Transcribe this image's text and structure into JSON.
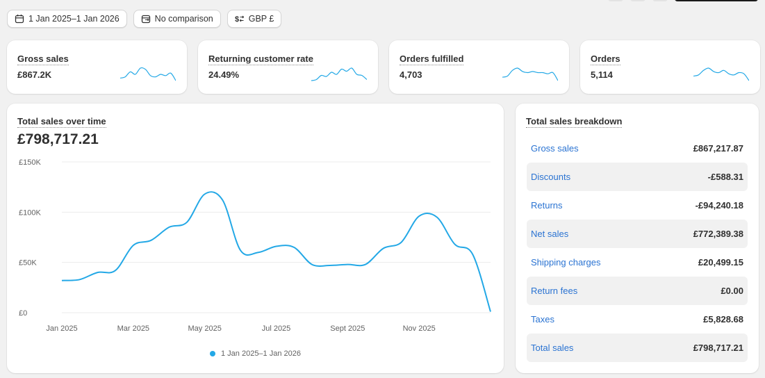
{
  "toolbar": {
    "date_range": "1 Jan 2025–1 Jan 2026",
    "comparison": "No comparison",
    "currency": "GBP £"
  },
  "kpis": [
    {
      "title": "Gross sales",
      "value": "£867.2K"
    },
    {
      "title": "Returning customer rate",
      "value": "24.49%"
    },
    {
      "title": "Orders fulfilled",
      "value": "4,703"
    },
    {
      "title": "Orders",
      "value": "5,114"
    }
  ],
  "sales_chart": {
    "title": "Total sales over time",
    "total": "£798,717.21",
    "legend": "1 Jan 2025–1 Jan 2026",
    "accent_color": "#23a8e6"
  },
  "chart_data": {
    "type": "line",
    "title": "Total sales over time",
    "x": [
      0,
      0.5,
      1,
      1.5,
      2,
      2.5,
      3,
      3.5,
      4,
      4.5,
      5,
      5.5,
      6,
      6.5,
      7,
      7.5,
      8,
      8.5,
      9,
      9.5,
      10,
      10.5,
      11,
      11.5,
      12
    ],
    "y_thousands": [
      32,
      33,
      40,
      42,
      67,
      72,
      85,
      90,
      118,
      112,
      62,
      60,
      66,
      65,
      48,
      47,
      48,
      48,
      64,
      70,
      96,
      95,
      68,
      58,
      1
    ],
    "x_tick_labels": [
      "Jan 2025",
      "Mar 2025",
      "May 2025",
      "Jul 2025",
      "Sept 2025",
      "Nov 2025"
    ],
    "x_tick_positions": [
      0,
      2,
      4,
      6,
      8,
      10
    ],
    "y_tick_labels": [
      "£0",
      "£50K",
      "£100K",
      "£150K"
    ],
    "y_tick_values": [
      0,
      50,
      100,
      150
    ],
    "ylim": [
      0,
      150
    ],
    "xlim": [
      0,
      12
    ],
    "series": [
      {
        "name": "1 Jan 2025–1 Jan 2026"
      }
    ],
    "grid": true
  },
  "breakdown": {
    "title": "Total sales breakdown",
    "rows": [
      {
        "label": "Gross sales",
        "value": "£867,217.87"
      },
      {
        "label": "Discounts",
        "value": "-£588.31"
      },
      {
        "label": "Returns",
        "value": "-£94,240.18"
      },
      {
        "label": "Net sales",
        "value": "£772,389.38"
      },
      {
        "label": "Shipping charges",
        "value": "£20,499.15"
      },
      {
        "label": "Return fees",
        "value": "£0.00"
      },
      {
        "label": "Taxes",
        "value": "£5,828.68"
      },
      {
        "label": "Total sales",
        "value": "£798,717.21"
      }
    ]
  },
  "sparklines": [
    [
      10,
      11,
      15,
      13,
      18,
      17,
      12,
      11,
      13,
      12,
      14,
      8
    ],
    [
      6,
      7,
      11,
      10,
      14,
      12,
      17,
      15,
      18,
      12,
      11,
      7
    ],
    [
      8,
      9,
      14,
      16,
      13,
      12,
      13,
      12,
      12,
      11,
      12,
      5
    ],
    [
      9,
      10,
      14,
      16,
      13,
      12,
      14,
      11,
      10,
      12,
      11,
      5
    ]
  ]
}
